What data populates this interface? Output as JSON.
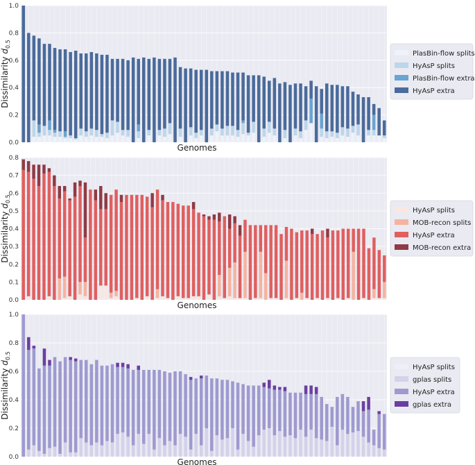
{
  "colors": {
    "axes_bg": "#eaeaf2",
    "grid": "#ffffff",
    "legend_bg": "#eaeaf2",
    "legend_border": "#d8d8e0"
  },
  "chart_data": [
    {
      "type": "bar",
      "stacked": true,
      "ylabel": "Dissimilarity d0.5",
      "ylabel_main": "Dissimilarity ",
      "ylabel_italic": "d",
      "ylabel_sub": "0.5",
      "xlabel": "Genomes",
      "ylim": [
        0,
        1.0
      ],
      "yticks": [
        "0.0",
        "0.2",
        "0.4",
        "0.6",
        "0.8",
        "1.0"
      ],
      "grid": true,
      "legend_position": "right",
      "series": [
        {
          "name": "PlasBin-flow splits",
          "color": "#eef2fa",
          "values": [
            0.0,
            0.0,
            0.04,
            0.04,
            0.05,
            0.05,
            0.04,
            0.04,
            0.03,
            0.03,
            0.02,
            0.05,
            0.04,
            0.05,
            0.04,
            0.04,
            0.03,
            0.05,
            0.07,
            0.05,
            0.04,
            0.0,
            0.03,
            0.0,
            0.05,
            0.0,
            0.05,
            0.04,
            0.06,
            0.0,
            0.04,
            0.0,
            0.05,
            0.03,
            0.05,
            0.0,
            0.05,
            0.08,
            0.05,
            0.05,
            0.05,
            0.04,
            0.06,
            0.05,
            0.07,
            0.0,
            0.04,
            0.07,
            0.05,
            0.0,
            0.03,
            0.0,
            0.05,
            0.03,
            0.09,
            0.14,
            0.0,
            0.04,
            0.03,
            0.04,
            0.03,
            0.05,
            0.04,
            0.07,
            0.05,
            0.0,
            0.05,
            0.05,
            0.05,
            0.03
          ]
        },
        {
          "name": "HyAsP splits",
          "color": "#bcd6ea",
          "values": [
            0.0,
            0.0,
            0.12,
            0.03,
            0.07,
            0.04,
            0.03,
            0.04,
            0.01,
            0.02,
            0.01,
            0.05,
            0.04,
            0.05,
            0.05,
            0.02,
            0.04,
            0.11,
            0.08,
            0.04,
            0.05,
            0.0,
            0.05,
            0.0,
            0.04,
            0.0,
            0.04,
            0.06,
            0.08,
            0.0,
            0.06,
            0.0,
            0.06,
            0.04,
            0.04,
            0.0,
            0.05,
            0.05,
            0.05,
            0.07,
            0.07,
            0.05,
            0.08,
            0.02,
            0.08,
            0.0,
            0.06,
            0.08,
            0.05,
            0.0,
            0.06,
            0.0,
            0.05,
            0.05,
            0.07,
            0.0,
            0.0,
            0.06,
            0.05,
            0.04,
            0.04,
            0.06,
            0.06,
            0.05,
            0.08,
            0.0,
            0.04,
            0.04,
            0.0,
            0.02
          ]
        },
        {
          "name": "PlasBin-flow extra",
          "color": "#6aa4d2",
          "values": [
            0.0,
            0.0,
            0.0,
            0.06,
            0.0,
            0.07,
            0.02,
            0.0,
            0.04,
            0.0,
            0.0,
            0.0,
            0.0,
            0.0,
            0.0,
            0.0,
            0.0,
            0.0,
            0.0,
            0.0,
            0.0,
            0.0,
            0.05,
            0.0,
            0.0,
            0.0,
            0.0,
            0.0,
            0.0,
            0.0,
            0.0,
            0.0,
            0.0,
            0.0,
            0.0,
            0.0,
            0.0,
            0.0,
            0.0,
            0.0,
            0.0,
            0.0,
            0.02,
            0.0,
            0.0,
            0.0,
            0.0,
            0.0,
            0.0,
            0.0,
            0.0,
            0.0,
            0.0,
            0.0,
            0.0,
            0.18,
            0.0,
            0.11,
            0.0,
            0.0,
            0.0,
            0.0,
            0.0,
            0.0,
            0.0,
            0.0,
            0.0,
            0.11,
            0.0,
            0.0
          ]
        },
        {
          "name": "HyAsP extra",
          "color": "#4a6b9b",
          "values": [
            1.0,
            0.8,
            0.62,
            0.63,
            0.6,
            0.56,
            0.6,
            0.6,
            0.6,
            0.61,
            0.64,
            0.55,
            0.57,
            0.56,
            0.56,
            0.58,
            0.57,
            0.45,
            0.46,
            0.52,
            0.51,
            0.62,
            0.48,
            0.62,
            0.52,
            0.62,
            0.52,
            0.51,
            0.47,
            0.62,
            0.45,
            0.54,
            0.43,
            0.46,
            0.44,
            0.53,
            0.42,
            0.39,
            0.42,
            0.4,
            0.39,
            0.42,
            0.35,
            0.42,
            0.34,
            0.49,
            0.38,
            0.3,
            0.37,
            0.43,
            0.35,
            0.42,
            0.33,
            0.35,
            0.25,
            0.13,
            0.41,
            0.18,
            0.35,
            0.34,
            0.35,
            0.3,
            0.31,
            0.25,
            0.22,
            0.33,
            0.24,
            0.08,
            0.2,
            0.11
          ]
        }
      ]
    },
    {
      "type": "bar",
      "stacked": true,
      "ylabel": "Dissimilarity d0.5",
      "ylabel_main": "Dissimilarity ",
      "ylabel_italic": "d",
      "ylabel_sub": "0.5",
      "xlabel": "Genomes",
      "ylim": [
        0,
        0.8
      ],
      "yticks": [
        "0.0",
        "0.1",
        "0.2",
        "0.3",
        "0.4",
        "0.5",
        "0.6",
        "0.7",
        "0.8"
      ],
      "grid": true,
      "legend_position": "right",
      "series": [
        {
          "name": "HyAsP splits",
          "color": "#fbe6e0",
          "values": [
            0.0,
            0.02,
            0.0,
            0.0,
            0.0,
            0.02,
            0.0,
            0.0,
            0.01,
            0.02,
            0.0,
            0.03,
            0.02,
            0.0,
            0.0,
            0.08,
            0.08,
            0.01,
            0.02,
            0.0,
            0.0,
            0.0,
            0.01,
            0.0,
            0.02,
            0.0,
            0.01,
            0.02,
            0.01,
            0.0,
            0.02,
            0.01,
            0.01,
            0.02,
            0.02,
            0.0,
            0.03,
            0.0,
            0.02,
            0.01,
            0.02,
            0.01,
            0.01,
            0.01,
            0.0,
            0.01,
            0.01,
            0.0,
            0.01,
            0.01,
            0.0,
            0.01,
            0.0,
            0.01,
            0.0,
            0.01,
            0.0,
            0.01,
            0.0,
            0.01,
            0.0,
            0.01,
            0.0,
            0.01,
            0.0,
            0.0,
            0.01,
            0.0,
            0.01,
            0.01,
            0.01
          ]
        },
        {
          "name": "MOB-recon splits",
          "color": "#f6b3a0",
          "values": [
            0.0,
            0.0,
            0.0,
            0.0,
            0.0,
            0.0,
            0.0,
            0.12,
            0.12,
            0.0,
            0.0,
            0.07,
            0.08,
            0.0,
            0.0,
            0.0,
            0.0,
            0.03,
            0.03,
            0.0,
            0.0,
            0.0,
            0.0,
            0.0,
            0.0,
            0.0,
            0.05,
            0.0,
            0.0,
            0.0,
            0.0,
            0.0,
            0.0,
            0.0,
            0.0,
            0.0,
            0.0,
            0.0,
            0.12,
            0.0,
            0.16,
            0.2,
            0.0,
            0.26,
            0.0,
            0.0,
            0.26,
            0.15,
            0.0,
            0.0,
            0.0,
            0.21,
            0.0,
            0.0,
            0.04,
            0.0,
            0.0,
            0.0,
            0.0,
            0.0,
            0.0,
            0.0,
            0.0,
            0.0,
            0.27,
            0.0,
            0.0,
            0.0,
            0.05,
            0.0,
            0.09
          ]
        },
        {
          "name": "HyAsP extra",
          "color": "#e05f5f",
          "values": [
            0.73,
            0.7,
            0.68,
            0.64,
            0.71,
            0.7,
            0.64,
            0.45,
            0.48,
            0.54,
            0.58,
            0.54,
            0.25,
            0.62,
            0.56,
            0.43,
            0.43,
            0.55,
            0.57,
            0.55,
            0.59,
            0.59,
            0.58,
            0.59,
            0.56,
            0.52,
            0.56,
            0.54,
            0.54,
            0.55,
            0.52,
            0.52,
            0.52,
            0.49,
            0.47,
            0.47,
            0.42,
            0.45,
            0.3,
            0.46,
            0.22,
            0.22,
            0.35,
            0.18,
            0.42,
            0.41,
            0.15,
            0.27,
            0.41,
            0.41,
            0.37,
            0.19,
            0.4,
            0.37,
            0.35,
            0.38,
            0.37,
            0.36,
            0.39,
            0.34,
            0.39,
            0.38,
            0.4,
            0.39,
            0.13,
            0.4,
            0.39,
            0.29,
            0.29,
            0.27,
            0.15
          ]
        },
        {
          "name": "MOB-recon extra",
          "color": "#8e3b46",
          "values": [
            0.06,
            0.06,
            0.08,
            0.12,
            0.05,
            0.02,
            0.06,
            0.07,
            0.03,
            0.01,
            0.08,
            0.03,
            0.31,
            0.0,
            0.06,
            0.13,
            0.09,
            0.0,
            0.0,
            0.04,
            0.0,
            0.0,
            0.0,
            0.0,
            0.0,
            0.08,
            0.0,
            0.03,
            0.0,
            0.0,
            0.0,
            0.0,
            0.0,
            0.04,
            0.0,
            0.01,
            0.02,
            0.03,
            0.05,
            0.0,
            0.08,
            0.04,
            0.06,
            0.0,
            0.0,
            0.0,
            0.0,
            0.0,
            0.0,
            0.0,
            0.0,
            0.0,
            0.0,
            0.0,
            0.0,
            0.0,
            0.03,
            0.0,
            0.0,
            0.05,
            0.0,
            0.0,
            0.0,
            0.0,
            0.0,
            0.0,
            0.0,
            0.0,
            0.0,
            0.0,
            0.0
          ]
        }
      ]
    },
    {
      "type": "bar",
      "stacked": true,
      "ylabel": "Dissimilarity d0.5",
      "ylabel_main": "Dissimilarity ",
      "ylabel_italic": "d",
      "ylabel_sub": "0.5",
      "xlabel": "Genomes",
      "ylim": [
        0,
        1.0
      ],
      "yticks": [
        "0.0",
        "0.2",
        "0.4",
        "0.6",
        "0.8",
        "1.0"
      ],
      "grid": true,
      "legend_position": "right",
      "series": [
        {
          "name": "HyAsP splits",
          "color": "#eeeef8",
          "values": [
            0.0,
            0.0,
            0.0,
            0.0,
            0.0,
            0.0,
            0.0,
            0.0,
            0.0,
            0.0,
            0.0,
            0.0,
            0.0,
            0.0,
            0.0,
            0.0,
            0.0,
            0.0,
            0.0,
            0.0,
            0.0,
            0.0,
            0.0,
            0.0,
            0.0,
            0.0,
            0.0,
            0.0,
            0.0,
            0.0,
            0.0,
            0.0,
            0.0,
            0.0,
            0.0,
            0.0,
            0.0,
            0.0,
            0.0,
            0.0,
            0.0,
            0.0,
            0.0,
            0.0,
            0.0,
            0.0,
            0.0,
            0.0,
            0.0,
            0.0,
            0.0,
            0.0,
            0.0,
            0.0,
            0.0,
            0.0,
            0.0,
            0.0,
            0.0,
            0.0,
            0.0,
            0.0,
            0.0,
            0.0,
            0.0,
            0.0,
            0.0,
            0.0,
            0.0,
            0.0
          ]
        },
        {
          "name": "gplas splits",
          "color": "#d4d2ea",
          "values": [
            0.0,
            0.05,
            0.08,
            0.04,
            0.02,
            0.06,
            0.07,
            0.02,
            0.1,
            0.03,
            0.03,
            0.13,
            0.1,
            0.08,
            0.1,
            0.08,
            0.11,
            0.1,
            0.16,
            0.17,
            0.14,
            0.08,
            0.16,
            0.09,
            0.16,
            0.05,
            0.13,
            0.08,
            0.11,
            0.08,
            0.16,
            0.14,
            0.05,
            0.16,
            0.08,
            0.2,
            0.04,
            0.15,
            0.12,
            0.13,
            0.2,
            0.05,
            0.16,
            0.11,
            0.07,
            0.15,
            0.19,
            0.2,
            0.15,
            0.18,
            0.14,
            0.15,
            0.13,
            0.19,
            0.14,
            0.19,
            0.13,
            0.12,
            0.11,
            0.21,
            0.08,
            0.19,
            0.16,
            0.17,
            0.18,
            0.14,
            0.1,
            0.08,
            0.06,
            0.05,
            0.06
          ]
        },
        {
          "name": "HyAsP extra",
          "color": "#9e9ad0",
          "values": [
            1.0,
            0.7,
            0.68,
            0.58,
            0.62,
            0.58,
            0.63,
            0.65,
            0.6,
            0.65,
            0.64,
            0.55,
            0.58,
            0.57,
            0.58,
            0.56,
            0.53,
            0.55,
            0.47,
            0.46,
            0.48,
            0.53,
            0.45,
            0.52,
            0.45,
            0.56,
            0.48,
            0.52,
            0.48,
            0.52,
            0.44,
            0.44,
            0.49,
            0.39,
            0.47,
            0.37,
            0.51,
            0.4,
            0.42,
            0.41,
            0.33,
            0.47,
            0.35,
            0.39,
            0.43,
            0.35,
            0.3,
            0.28,
            0.32,
            0.29,
            0.32,
            0.3,
            0.32,
            0.26,
            0.3,
            0.25,
            0.31,
            0.3,
            0.26,
            0.14,
            0.34,
            0.25,
            0.26,
            0.18,
            0.21,
            0.18,
            0.23,
            0.11,
            0.24,
            0.25,
            0.24
          ]
        },
        {
          "name": "gplas extra",
          "color": "#6b3fa0",
          "values": [
            0.0,
            0.09,
            0.02,
            0.0,
            0.12,
            0.04,
            0.0,
            0.0,
            0.0,
            0.02,
            0.02,
            0.0,
            0.0,
            0.0,
            0.0,
            0.0,
            0.0,
            0.0,
            0.03,
            0.03,
            0.03,
            0.0,
            0.03,
            0.0,
            0.0,
            0.0,
            0.0,
            0.0,
            0.0,
            0.0,
            0.0,
            0.0,
            0.02,
            0.0,
            0.02,
            0.0,
            0.0,
            0.0,
            0.0,
            0.0,
            0.0,
            0.0,
            0.0,
            0.0,
            0.0,
            0.0,
            0.03,
            0.06,
            0.03,
            0.02,
            0.03,
            0.0,
            0.0,
            0.0,
            0.06,
            0.06,
            0.05,
            0.0,
            0.0,
            0.0,
            0.0,
            0.0,
            0.0,
            0.0,
            0.0,
            0.07,
            0.09,
            0.0,
            0.02,
            0.0,
            0.0
          ]
        }
      ]
    }
  ]
}
